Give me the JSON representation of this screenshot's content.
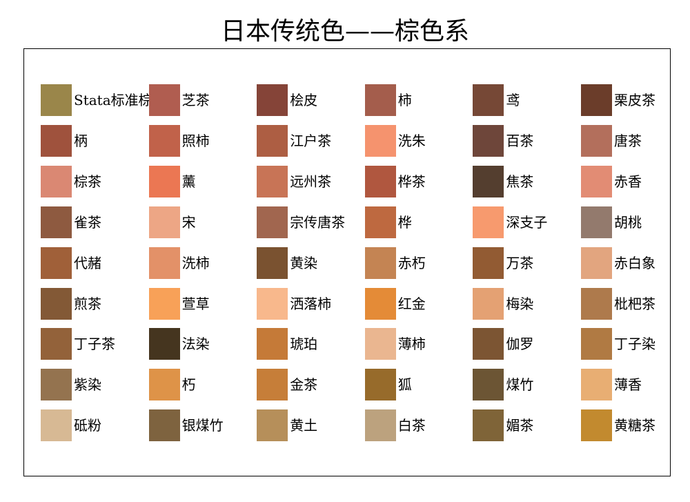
{
  "title": "日本传统色——棕色系",
  "chart_data": {
    "type": "table",
    "title": "日本传统色——棕色系",
    "columns": 6,
    "rows": 9,
    "swatches": [
      {
        "name": "Stata标准棕",
        "color": "#9A864A"
      },
      {
        "name": "芝茶",
        "color": "#B05D50"
      },
      {
        "name": "桧皮",
        "color": "#854438"
      },
      {
        "name": "柿",
        "color": "#A45D4C"
      },
      {
        "name": "鸢",
        "color": "#764836"
      },
      {
        "name": "栗皮茶",
        "color": "#6B3D2A"
      },
      {
        "name": "柄",
        "color": "#9F523D"
      },
      {
        "name": "照柿",
        "color": "#C1624A"
      },
      {
        "name": "江户茶",
        "color": "#AD5E43"
      },
      {
        "name": "洗朱",
        "color": "#F5936E"
      },
      {
        "name": "百茶",
        "color": "#6E463A"
      },
      {
        "name": "唐茶",
        "color": "#B36F5C"
      },
      {
        "name": "棕茶",
        "color": "#DA8873"
      },
      {
        "name": "薰",
        "color": "#EB7753"
      },
      {
        "name": "远州茶",
        "color": "#C87456"
      },
      {
        "name": "桦茶",
        "color": "#B0573F"
      },
      {
        "name": "焦茶",
        "color": "#543E2F"
      },
      {
        "name": "赤香",
        "color": "#E28C74"
      },
      {
        "name": "雀茶",
        "color": "#8E5A40"
      },
      {
        "name": "宋",
        "color": "#EDA685"
      },
      {
        "name": "宗传唐茶",
        "color": "#A1664F"
      },
      {
        "name": "桦",
        "color": "#BE6940"
      },
      {
        "name": "深支子",
        "color": "#F79A6E"
      },
      {
        "name": "胡桃",
        "color": "#937A6D"
      },
      {
        "name": "代赭",
        "color": "#A06039"
      },
      {
        "name": "洗柿",
        "color": "#E39168"
      },
      {
        "name": "黄染",
        "color": "#7A5230"
      },
      {
        "name": "赤朽",
        "color": "#C48453"
      },
      {
        "name": "万茶",
        "color": "#925B33"
      },
      {
        "name": "赤白象",
        "color": "#E2A57F"
      },
      {
        "name": "煎茶",
        "color": "#835936"
      },
      {
        "name": "萱草",
        "color": "#F8A158"
      },
      {
        "name": "洒落柿",
        "color": "#F8B88C"
      },
      {
        "name": "红金",
        "color": "#E48B37"
      },
      {
        "name": "梅染",
        "color": "#E4A173"
      },
      {
        "name": "枇杷茶",
        "color": "#AE7A4C"
      },
      {
        "name": "丁子茶",
        "color": "#93623A"
      },
      {
        "name": "法染",
        "color": "#45351F"
      },
      {
        "name": "琥珀",
        "color": "#C57A38"
      },
      {
        "name": "薄柿",
        "color": "#EAB690"
      },
      {
        "name": "伽罗",
        "color": "#7C5533"
      },
      {
        "name": "丁子染",
        "color": "#B07A43"
      },
      {
        "name": "紫染",
        "color": "#94734F"
      },
      {
        "name": "朽",
        "color": "#DE9348"
      },
      {
        "name": "金茶",
        "color": "#C67E39"
      },
      {
        "name": "狐",
        "color": "#976B2B"
      },
      {
        "name": "煤竹",
        "color": "#6C5534"
      },
      {
        "name": "薄香",
        "color": "#E8AE73"
      },
      {
        "name": "砥粉",
        "color": "#D7B994"
      },
      {
        "name": "银煤竹",
        "color": "#7E633F"
      },
      {
        "name": "黄土",
        "color": "#B68F5A"
      },
      {
        "name": "白茶",
        "color": "#BCA27E"
      },
      {
        "name": "媚茶",
        "color": "#7F6438"
      },
      {
        "name": "黄糖茶",
        "color": "#C28A2F"
      }
    ]
  }
}
